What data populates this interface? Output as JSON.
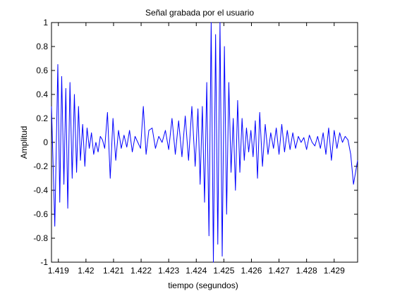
{
  "chart_data": {
    "type": "line",
    "title": "Señal grabada por el usuario",
    "xlabel": "tiempo (segundos)",
    "ylabel": "Amplitud",
    "xlim": [
      1.41875,
      1.42985
    ],
    "ylim": [
      -1,
      1
    ],
    "xticks": [
      1.419,
      1.42,
      1.421,
      1.422,
      1.423,
      1.424,
      1.425,
      1.426,
      1.427,
      1.428,
      1.429
    ],
    "xtick_labels": [
      "1.419",
      "1.42",
      "1.421",
      "1.422",
      "1.423",
      "1.424",
      "1.425",
      "1.426",
      "1.427",
      "1.428",
      "1.429"
    ],
    "yticks": [
      -1,
      -0.8,
      -0.6,
      -0.4,
      -0.2,
      0,
      0.2,
      0.4,
      0.6,
      0.8,
      1
    ],
    "ytick_labels": [
      "-1",
      "-0.8",
      "-0.6",
      "-0.4",
      "-0.2",
      "0",
      "0.2",
      "0.4",
      "0.6",
      "0.8",
      "1"
    ],
    "grid": false,
    "line_color": "#0000ff",
    "series": [
      {
        "x": [
          1.41875,
          1.41887,
          1.41898,
          1.41905,
          1.41912,
          1.4192,
          1.41927,
          1.41934,
          1.41942,
          1.4195,
          1.41958,
          1.41966,
          1.41973,
          1.4198,
          1.41988,
          1.41996,
          1.42004,
          1.42012,
          1.4202,
          1.42028,
          1.42036,
          1.42044,
          1.42052,
          1.4206,
          1.42068,
          1.42078,
          1.42088,
          1.42098,
          1.42108,
          1.42118,
          1.42128,
          1.42138,
          1.42148,
          1.42158,
          1.42168,
          1.42178,
          1.42188,
          1.42198,
          1.42208,
          1.42218,
          1.42228,
          1.4224,
          1.42252,
          1.42264,
          1.42276,
          1.42288,
          1.423,
          1.42312,
          1.42324,
          1.42336,
          1.42348,
          1.4236,
          1.42372,
          1.42384,
          1.42396,
          1.42406,
          1.42414,
          1.42422,
          1.4243,
          1.42438,
          1.42446,
          1.42454,
          1.42462,
          1.4247,
          1.42478,
          1.42486,
          1.42494,
          1.42502,
          1.4251,
          1.42518,
          1.42526,
          1.42534,
          1.42542,
          1.4255,
          1.42558,
          1.42566,
          1.42574,
          1.42582,
          1.4259,
          1.42598,
          1.42606,
          1.42614,
          1.42622,
          1.4263,
          1.4264,
          1.4265,
          1.4266,
          1.4267,
          1.4268,
          1.4269,
          1.427,
          1.4271,
          1.4272,
          1.4273,
          1.4274,
          1.4275,
          1.4276,
          1.4277,
          1.4278,
          1.4279,
          1.428,
          1.4281,
          1.4282,
          1.4283,
          1.4284,
          1.4285,
          1.4286,
          1.4287,
          1.4288,
          1.4289,
          1.429,
          1.4291,
          1.4292,
          1.4293,
          1.4294,
          1.4295,
          1.4296,
          1.4297,
          1.42985
        ],
        "y": [
          0.3,
          -0.7,
          0.65,
          -0.5,
          0.55,
          -0.35,
          0.45,
          -0.55,
          0.5,
          -0.3,
          0.4,
          -0.25,
          0.3,
          -0.15,
          0.15,
          -0.2,
          0.12,
          -0.05,
          0.08,
          -0.1,
          0.0,
          -0.08,
          0.05,
          0.02,
          -0.05,
          0.25,
          -0.3,
          0.2,
          -0.15,
          0.1,
          -0.05,
          0.06,
          -0.04,
          0.1,
          -0.08,
          0.05,
          0.0,
          -0.05,
          0.3,
          -0.1,
          0.1,
          0.12,
          -0.05,
          0.05,
          0.0,
          0.1,
          -0.06,
          0.2,
          -0.1,
          0.18,
          -0.12,
          0.22,
          -0.15,
          0.3,
          -0.2,
          0.28,
          -0.35,
          0.3,
          -0.5,
          0.5,
          -0.78,
          1.0,
          -1.0,
          0.9,
          -0.85,
          1.0,
          -0.95,
          0.8,
          -0.6,
          0.5,
          -0.25,
          0.2,
          -0.4,
          0.35,
          -0.25,
          0.2,
          -0.15,
          0.12,
          -0.08,
          0.1,
          -0.12,
          0.18,
          -0.3,
          0.25,
          -0.2,
          0.15,
          -0.1,
          0.08,
          -0.05,
          0.12,
          -0.1,
          0.15,
          -0.08,
          0.1,
          -0.06,
          0.08,
          -0.05,
          0.05,
          0.0,
          0.04,
          -0.06,
          0.06,
          0.0,
          -0.03,
          0.05,
          -0.05,
          0.08,
          -0.1,
          0.12,
          -0.15,
          0.1,
          -0.05,
          0.08,
          0.0,
          0.05,
          0.02,
          -0.1,
          -0.35,
          -0.15
        ]
      }
    ]
  }
}
